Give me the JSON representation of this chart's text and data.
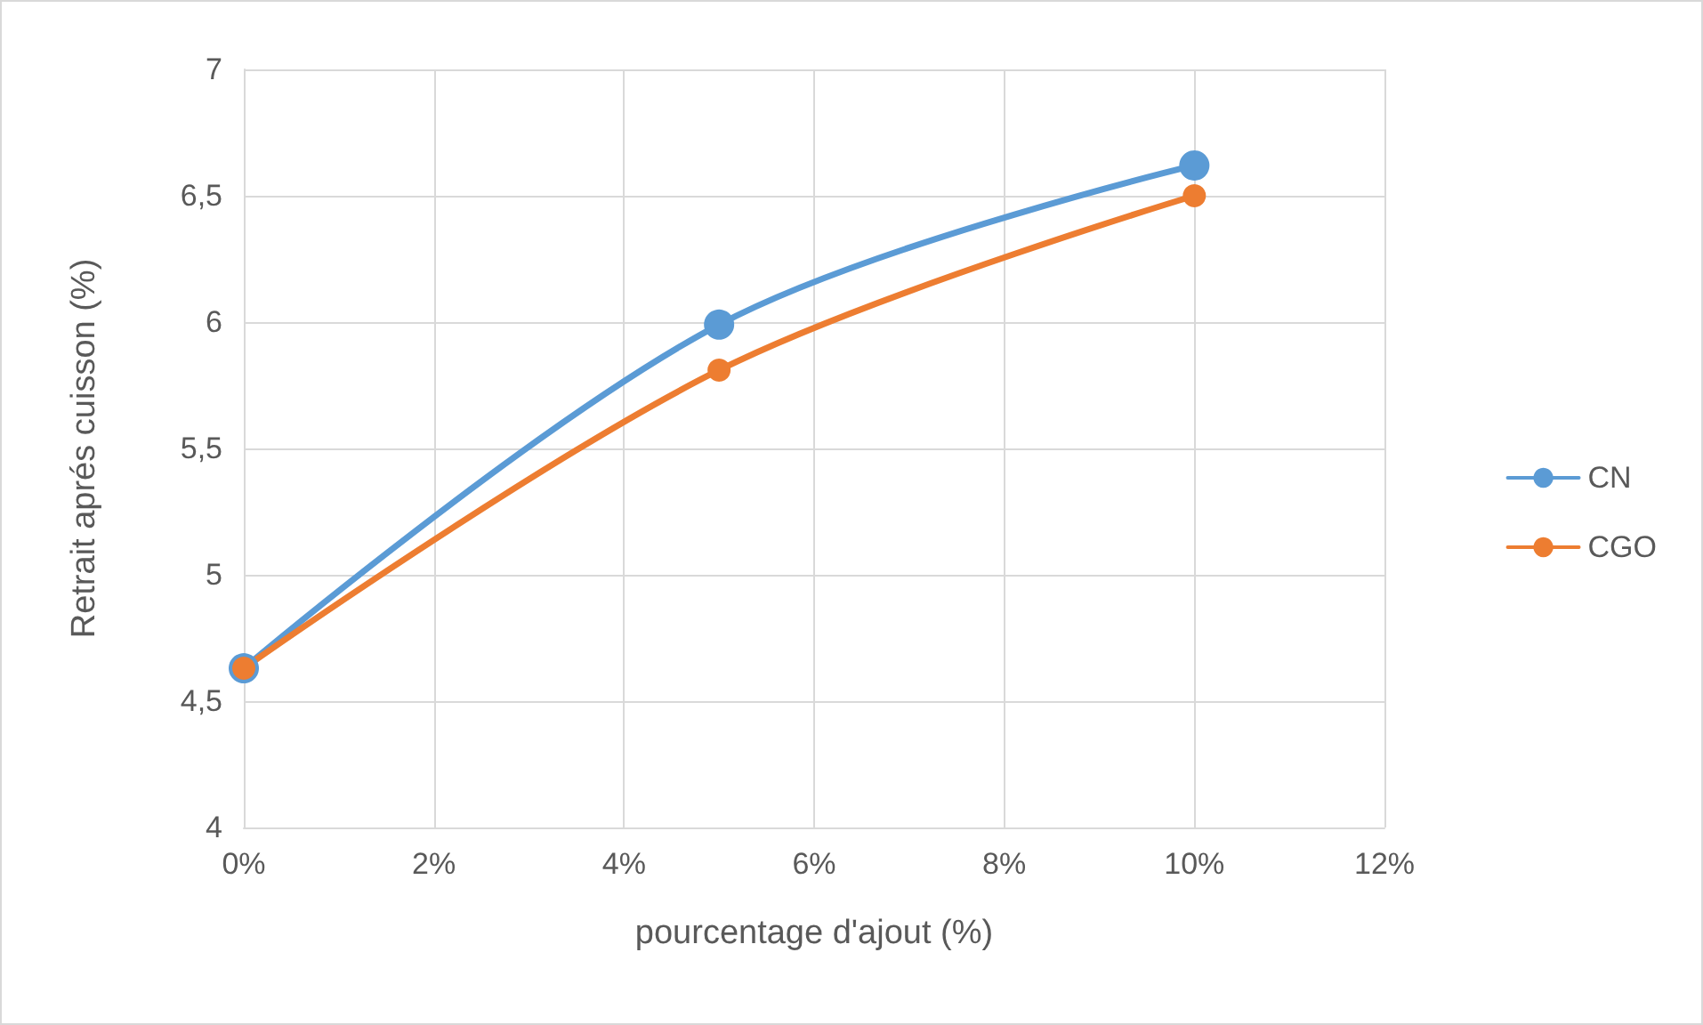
{
  "chart_data": {
    "type": "line",
    "xlabel": "pourcentage d'ajout (%)",
    "ylabel": "Retrait aprés cuisson (%)",
    "x": [
      0,
      5,
      10
    ],
    "series": [
      {
        "name": "CN",
        "color": "#5b9bd5",
        "values": [
          4.63,
          5.99,
          6.62
        ]
      },
      {
        "name": "CGO",
        "color": "#ed7d31",
        "values": [
          4.63,
          5.81,
          6.5
        ]
      }
    ],
    "xlim": [
      0,
      12
    ],
    "xticks": [
      {
        "value": 0,
        "label": "0%"
      },
      {
        "value": 2,
        "label": "2%"
      },
      {
        "value": 4,
        "label": "4%"
      },
      {
        "value": 6,
        "label": "6%"
      },
      {
        "value": 8,
        "label": "8%"
      },
      {
        "value": 10,
        "label": "10%"
      },
      {
        "value": 12,
        "label": "12%"
      }
    ],
    "ylim": [
      4,
      7
    ],
    "yticks": [
      4,
      {
        "value": 4.5,
        "label": "4,5"
      },
      5,
      {
        "value": 5.5,
        "label": "5,5"
      },
      6,
      {
        "value": 6.5,
        "label": "6,5"
      },
      7
    ],
    "grid": true,
    "legend": "right",
    "marker": "circle",
    "line_style": "solid"
  }
}
